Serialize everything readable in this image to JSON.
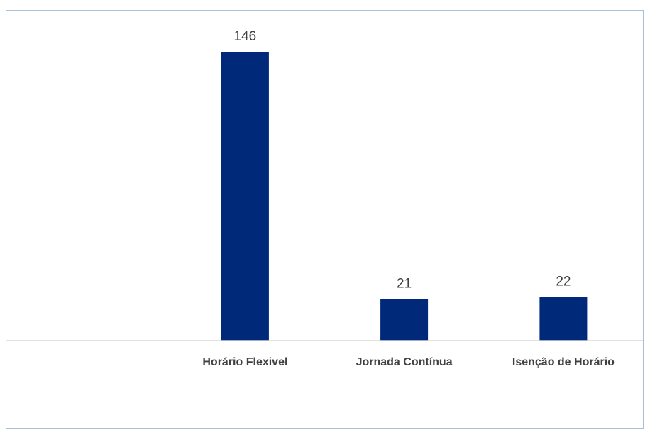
{
  "chart_data": {
    "type": "bar",
    "categories": [
      "",
      "Horário Flexivel",
      "Jornada Contínua",
      "Isenção de Horário"
    ],
    "values": [
      null,
      146,
      21,
      22
    ],
    "data_labels": [
      "",
      "146",
      "21",
      "22"
    ],
    "title": "",
    "xlabel": "",
    "ylabel": "",
    "ylim": [
      0,
      155
    ],
    "grid": false,
    "legend": "none"
  },
  "colors": {
    "bar": "#00297a",
    "axis": "#d9d9d9",
    "border": "#a9bfd6",
    "text": "#404040"
  }
}
